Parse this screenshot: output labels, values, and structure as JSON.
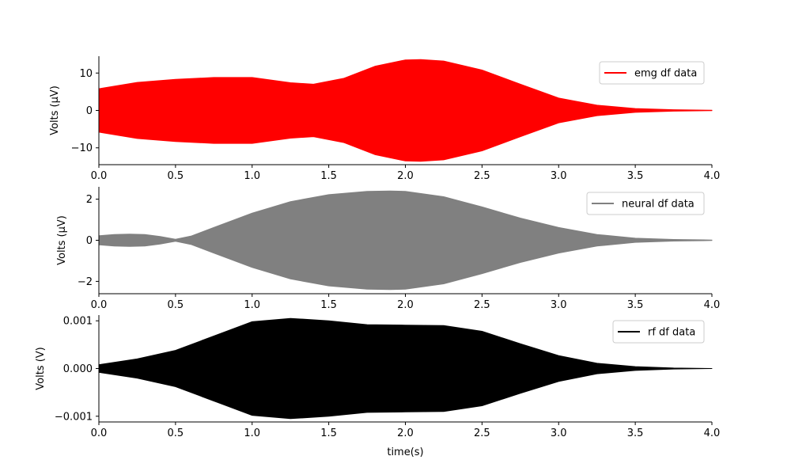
{
  "chart_data": [
    {
      "type": "area",
      "ylabel": "Volts (μV)",
      "xlim": [
        0,
        4
      ],
      "ylim": [
        -14.5,
        14.5
      ],
      "x_ticks": [
        0,
        0.5,
        1,
        1.5,
        2,
        2.5,
        3,
        3.5,
        4
      ],
      "x_tick_labels": [
        "0.0",
        "0.5",
        "1.0",
        "1.5",
        "2.0",
        "2.5",
        "3.0",
        "3.5",
        "4.0"
      ],
      "y_ticks": [
        -10,
        0,
        10
      ],
      "y_tick_labels": [
        "−10",
        "0",
        "10"
      ],
      "legend": "top-right",
      "series": [
        {
          "name": "emg df data",
          "color": "#ff0000",
          "x": [
            0,
            0.25,
            0.5,
            0.75,
            1.0,
            1.25,
            1.4,
            1.6,
            1.8,
            2.0,
            2.1,
            2.25,
            2.5,
            2.75,
            3.0,
            3.25,
            3.5,
            3.75,
            4.0
          ],
          "envelope": [
            5.8,
            7.5,
            8.3,
            8.8,
            8.8,
            7.4,
            7.0,
            8.6,
            11.8,
            13.5,
            13.6,
            13.2,
            10.8,
            7.0,
            3.3,
            1.4,
            0.5,
            0.2,
            0.05
          ]
        }
      ]
    },
    {
      "type": "area",
      "ylabel": "Volts (μV)",
      "xlim": [
        0,
        4
      ],
      "ylim": [
        -2.6,
        2.6
      ],
      "x_ticks": [
        0,
        0.5,
        1,
        1.5,
        2,
        2.5,
        3,
        3.5,
        4
      ],
      "x_tick_labels": [
        "0.0",
        "0.5",
        "1.0",
        "1.5",
        "2.0",
        "2.5",
        "3.0",
        "3.5",
        "4.0"
      ],
      "y_ticks": [
        -2,
        0,
        2
      ],
      "y_tick_labels": [
        "−2",
        "0",
        "2"
      ],
      "legend": "top-right",
      "series": [
        {
          "name": "neural df data",
          "color": "#808080",
          "x": [
            0,
            0.1,
            0.2,
            0.3,
            0.4,
            0.5,
            0.6,
            0.75,
            1.0,
            1.25,
            1.5,
            1.75,
            1.9,
            2.0,
            2.25,
            2.5,
            2.75,
            3.0,
            3.25,
            3.5,
            3.75,
            4.0
          ],
          "envelope": [
            0.22,
            0.28,
            0.3,
            0.28,
            0.18,
            0.05,
            0.2,
            0.62,
            1.32,
            1.88,
            2.22,
            2.38,
            2.4,
            2.38,
            2.12,
            1.62,
            1.08,
            0.62,
            0.28,
            0.1,
            0.04,
            0.01
          ]
        }
      ]
    },
    {
      "type": "area",
      "ylabel": "Volts (V)",
      "xlabel": "time(s)",
      "xlim": [
        0,
        4
      ],
      "ylim": [
        -0.00112,
        0.00112
      ],
      "x_ticks": [
        0,
        0.5,
        1,
        1.5,
        2,
        2.5,
        3,
        3.5,
        4
      ],
      "x_tick_labels": [
        "0.0",
        "0.5",
        "1.0",
        "1.5",
        "2.0",
        "2.5",
        "3.0",
        "3.5",
        "4.0"
      ],
      "y_ticks": [
        -0.001,
        0,
        0.001
      ],
      "y_tick_labels": [
        "−0.001",
        "0.000",
        "0.001"
      ],
      "legend": "top-right",
      "series": [
        {
          "name": "rf df data",
          "color": "#000000",
          "x": [
            0,
            0.25,
            0.5,
            0.75,
            1.0,
            1.25,
            1.5,
            1.75,
            2.0,
            2.25,
            2.5,
            2.75,
            3.0,
            3.25,
            3.5,
            3.75,
            4.0
          ],
          "envelope": [
            8e-05,
            0.0002,
            0.00038,
            0.00068,
            0.00098,
            0.00105,
            0.001,
            0.00092,
            0.00091,
            0.0009,
            0.00078,
            0.00052,
            0.00027,
            0.00011,
            4e-05,
            1e-05,
            0.0
          ]
        }
      ]
    }
  ]
}
